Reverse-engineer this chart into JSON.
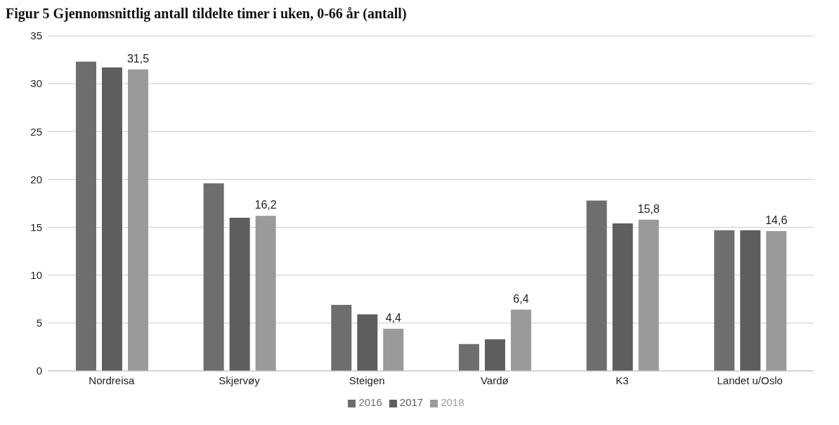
{
  "chart_data": {
    "type": "bar",
    "title": "Figur 5 Gjennomsnittlig antall tildelte timer i uken, 0-66 år (antall)",
    "categories": [
      "Nordreisa",
      "Skjervøy",
      "Steigen",
      "Vardø",
      "K3",
      "Landet u/Oslo"
    ],
    "series": [
      {
        "name": "2016",
        "color": "#6e6e6e",
        "values": [
          32.3,
          19.6,
          6.9,
          2.8,
          17.8,
          14.7
        ]
      },
      {
        "name": "2017",
        "color": "#5e5e5e",
        "values": [
          31.7,
          16.0,
          5.9,
          3.3,
          15.4,
          14.7
        ]
      },
      {
        "name": "2018",
        "color": "#9a9a9a",
        "values": [
          31.5,
          16.2,
          4.4,
          6.4,
          15.8,
          14.6
        ],
        "value_labels": [
          "31,5",
          "16,2",
          "4,4",
          "6,4",
          "15,8",
          "14,6"
        ]
      }
    ],
    "ylim": [
      0,
      35
    ],
    "yticks": [
      0,
      5,
      10,
      15,
      20,
      25,
      30,
      35
    ],
    "grid": "y",
    "legend": "bottom"
  }
}
